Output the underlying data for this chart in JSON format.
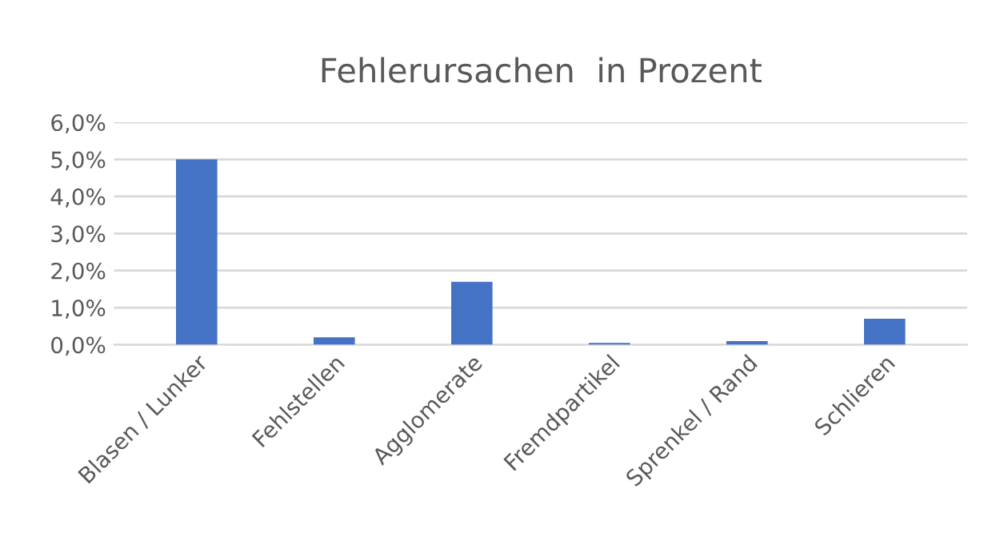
{
  "chart_data": {
    "type": "bar",
    "title": "Fehlerursachen  in Prozent",
    "categories": [
      "Blasen / Lunker",
      "Fehlstellen",
      "Agglomerate",
      "Fremdpartikel",
      "Sprenkel / Rand",
      "Schlieren"
    ],
    "values": [
      5.0,
      0.2,
      1.7,
      0.05,
      0.1,
      0.7
    ],
    "color": "#4472c4",
    "ylim": [
      0,
      6
    ],
    "yticks": [
      {
        "value": 0,
        "label": "0,0%"
      },
      {
        "value": 1,
        "label": "1,0%"
      },
      {
        "value": 2,
        "label": "2,0%"
      },
      {
        "value": 3,
        "label": "3,0%"
      },
      {
        "value": 4,
        "label": "4,0%"
      },
      {
        "value": 5,
        "label": "5,0%"
      },
      {
        "value": 6,
        "label": "6,0%"
      }
    ],
    "grid": "y",
    "legend": false
  }
}
